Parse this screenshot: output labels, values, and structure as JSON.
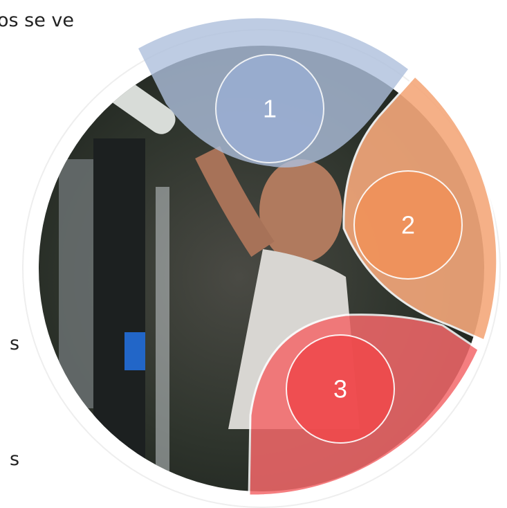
{
  "side_text": [
    "os se ve",
    "s",
    "s"
  ],
  "markers": [
    "1",
    "2",
    "3"
  ]
}
